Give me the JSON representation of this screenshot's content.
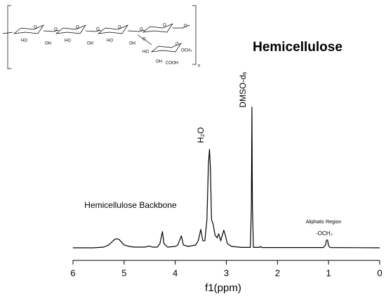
{
  "chart_data": {
    "type": "line",
    "title": "Hemicellulose",
    "xlabel": "f1(ppm)",
    "xlim": [
      6,
      0
    ],
    "xticks": [
      6,
      5,
      4,
      3,
      2,
      1,
      0
    ],
    "ylim": [
      0,
      1
    ],
    "color": "#000000",
    "x": [
      6.0,
      5.6,
      5.4,
      5.3,
      5.2,
      5.15,
      5.1,
      5.05,
      5.0,
      4.95,
      4.9,
      4.8,
      4.6,
      4.5,
      4.45,
      4.35,
      4.3,
      4.25,
      4.22,
      4.15,
      4.0,
      3.95,
      3.88,
      3.84,
      3.75,
      3.6,
      3.55,
      3.5,
      3.46,
      3.42,
      3.38,
      3.35,
      3.33,
      3.31,
      3.29,
      3.26,
      3.22,
      3.18,
      3.15,
      3.11,
      3.07,
      3.05,
      3.02,
      2.98,
      2.9,
      2.7,
      2.53,
      2.51,
      2.5,
      2.49,
      2.47,
      2.35,
      2.33,
      2.31,
      1.8,
      1.1,
      1.06,
      1.04,
      1.02,
      1.0,
      0.97,
      0.0
    ],
    "values": [
      0,
      0,
      0.005,
      0.02,
      0.055,
      0.065,
      0.06,
      0.04,
      0.02,
      0.015,
      0.01,
      0.005,
      0.005,
      0.012,
      0.005,
      0.005,
      0.03,
      0.115,
      0.03,
      0.005,
      0.01,
      0.02,
      0.085,
      0.02,
      0.01,
      0.02,
      0.05,
      0.13,
      0.05,
      0.05,
      0.2,
      0.6,
      0.7,
      0.55,
      0.2,
      0.17,
      0.09,
      0.07,
      0.1,
      0.05,
      0.1,
      0.125,
      0.09,
      0.03,
      0.01,
      0.003,
      0.003,
      0.3,
      1.0,
      0.3,
      0.003,
      0.003,
      0.01,
      0.002,
      0.002,
      0.002,
      0.02,
      0.055,
      0.055,
      0.015,
      0.002,
      0
    ],
    "annotations": [
      "H₂O",
      "DMSO-d₆",
      "Hemicellulose Backbone",
      "Aliphatic Region",
      "-OCH₃"
    ]
  },
  "structure": {
    "labels": [
      "O",
      "O",
      "O",
      "O",
      "O",
      "O",
      "O",
      "O",
      "HO",
      "OH",
      "HO",
      "OH",
      "HO",
      "OH",
      "O",
      "HO",
      "O",
      "OH",
      "OCH₃",
      "COOH",
      "n"
    ]
  }
}
